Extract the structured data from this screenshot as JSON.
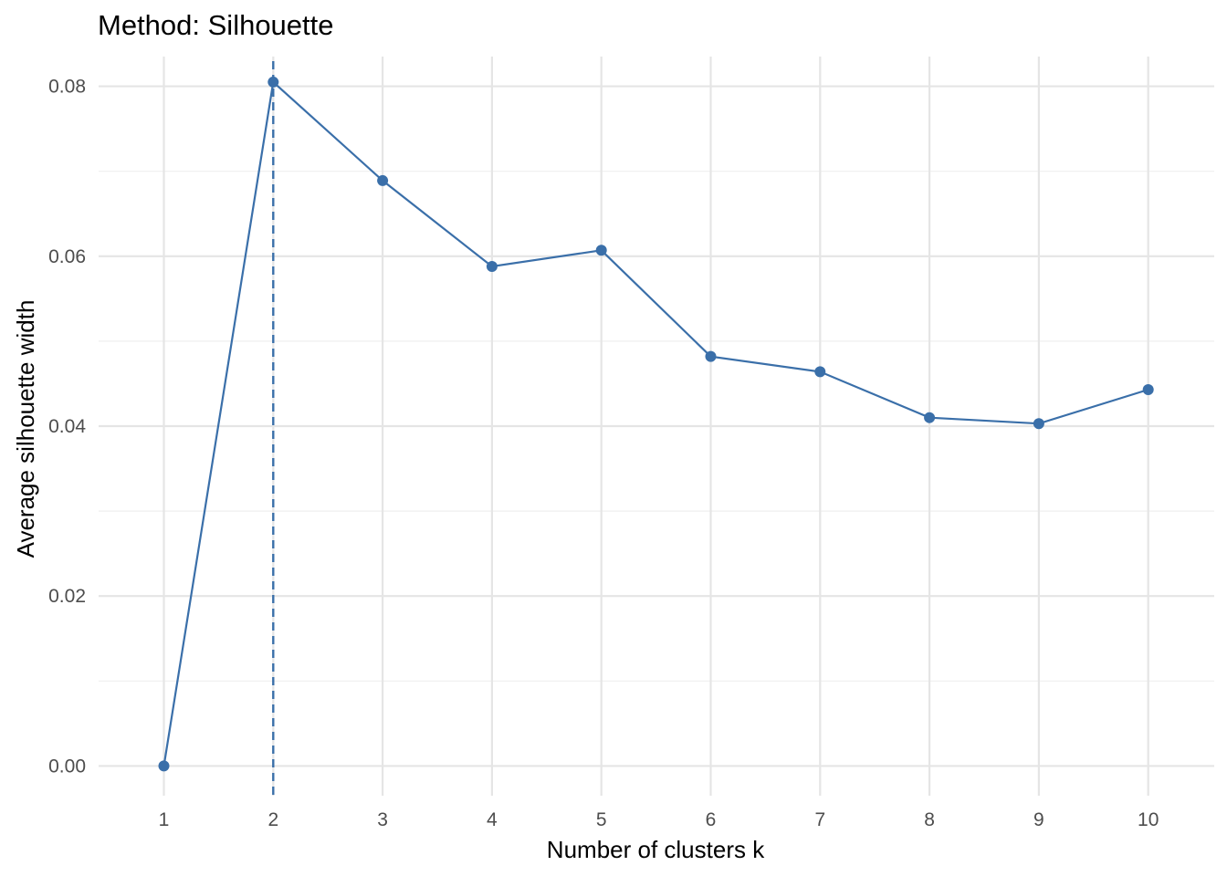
{
  "chart_data": {
    "type": "line",
    "title": "Method: Silhouette",
    "xlabel": "Number of clusters k",
    "ylabel": "Average silhouette width",
    "x": [
      "1",
      "2",
      "3",
      "4",
      "5",
      "6",
      "7",
      "8",
      "9",
      "10"
    ],
    "series": [
      {
        "values": [
          0.0,
          0.0805,
          0.0689,
          0.0588,
          0.0607,
          0.0482,
          0.0464,
          0.041,
          0.0403,
          0.0443
        ]
      }
    ],
    "y_ticks": [
      "0.00",
      "0.02",
      "0.04",
      "0.06",
      "0.08"
    ],
    "ylim": [
      -0.0035,
      0.0835
    ],
    "optimal_k": "2",
    "grid": true,
    "colors": {
      "line": "#3a6fa9",
      "grid_major": "#e5e5e5",
      "grid_minor": "#efefef"
    }
  }
}
